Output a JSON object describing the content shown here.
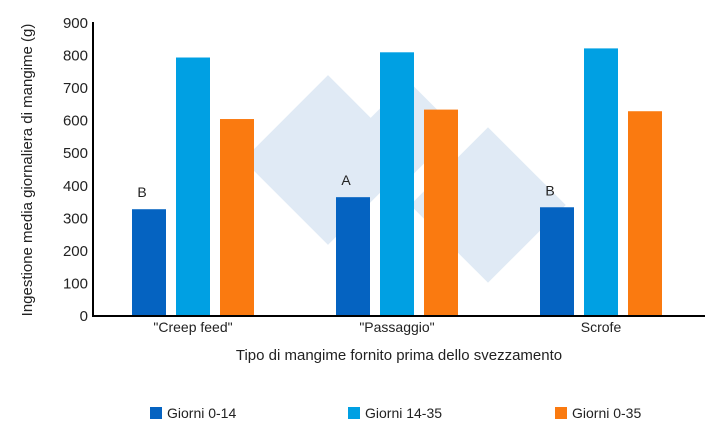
{
  "chart_data": {
    "type": "bar",
    "title": "",
    "xlabel": "Tipo di mangime fornito prima dello svezzamento",
    "ylabel": "Ingestione media giornaliera di mangime (g)",
    "ylim": [
      0,
      900
    ],
    "yticks": [
      0,
      100,
      200,
      300,
      400,
      500,
      600,
      700,
      800,
      900
    ],
    "categories": [
      "\"Creep feed\"",
      "\"Passaggio\"",
      "Scrofe"
    ],
    "series": [
      {
        "name": "Giorni 0-14",
        "color": "#0563c1",
        "values": [
          328,
          365,
          334
        ],
        "labels": [
          "B",
          "A",
          "B"
        ]
      },
      {
        "name": "Giorni 14-35",
        "color": "#00a0e3",
        "values": [
          794,
          810,
          822
        ]
      },
      {
        "name": "Giorni 0-35",
        "color": "#fa7a10",
        "values": [
          605,
          634,
          629
        ]
      }
    ],
    "legend_position": "bottom",
    "grid": false
  }
}
